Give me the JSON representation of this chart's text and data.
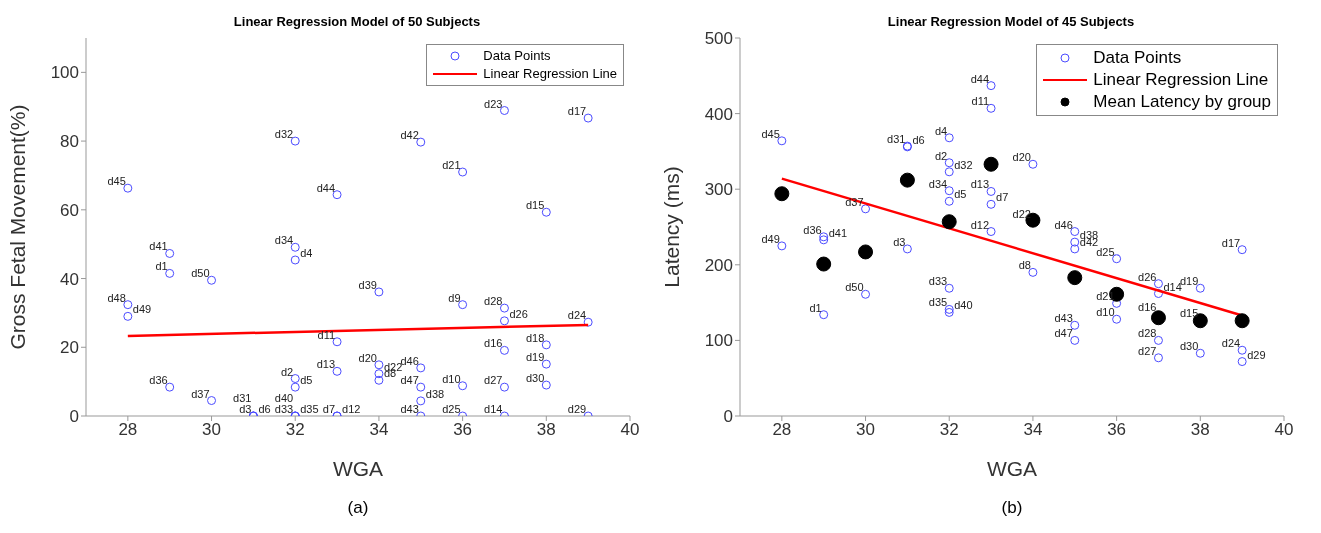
{
  "chart_data": [
    {
      "type": "scatter",
      "title": "Linear Regression Model of 50 Subjects",
      "xlabel": "WGA",
      "ylabel": "Gross Fetal Movement(%)",
      "xlim": [
        27,
        40
      ],
      "ylim": [
        0,
        110
      ],
      "xticks": [
        28,
        30,
        32,
        34,
        36,
        38,
        40
      ],
      "yticks": [
        0,
        20,
        40,
        60,
        80,
        100
      ],
      "grid": false,
      "legend": "top right",
      "series": [
        {
          "name": "Data Points",
          "type": "scatter",
          "marker": "circle",
          "color": "#4b4bff",
          "x": [
            28,
            28,
            28,
            29,
            29,
            29,
            30,
            30,
            31,
            31,
            31,
            32,
            32,
            32,
            32,
            32,
            32,
            32,
            32,
            33,
            33,
            33,
            33,
            33,
            34,
            34,
            34,
            34,
            35,
            35,
            35,
            35,
            35,
            36,
            36,
            36,
            36,
            37,
            37,
            37,
            37,
            37,
            37,
            38,
            38,
            38,
            38,
            39,
            39,
            39
          ],
          "values": [
            66.3,
            32.4,
            29.0,
            47.3,
            41.5,
            8.4,
            39.5,
            4.5,
            0,
            0,
            0,
            80.0,
            49.1,
            45.4,
            10.9,
            8.4,
            0,
            0,
            0,
            64.4,
            21.6,
            13.0,
            0,
            0,
            36.1,
            14.9,
            12.3,
            10.4,
            79.7,
            14.0,
            8.4,
            4.4,
            0,
            71.0,
            32.4,
            8.8,
            0,
            88.9,
            31.4,
            27.7,
            19.1,
            8.4,
            0,
            59.3,
            20.7,
            15.1,
            9.0,
            86.7,
            27.3,
            0
          ]
        },
        {
          "name": "Linear Regression Line",
          "type": "line",
          "marker": "none",
          "color": "#ff0000",
          "x": [
            28,
            39
          ],
          "values": [
            23.3,
            26.5
          ]
        }
      ],
      "annotations": [
        {
          "text": "d45",
          "x": 28,
          "y": 66.3
        },
        {
          "text": "d48",
          "x": 28,
          "y": 32.4
        },
        {
          "text": "d49",
          "x": 28,
          "y": 29.0
        },
        {
          "text": "d41",
          "x": 29,
          "y": 47.3
        },
        {
          "text": "d1",
          "x": 29,
          "y": 41.5
        },
        {
          "text": "d36",
          "x": 29,
          "y": 8.4
        },
        {
          "text": "d50",
          "x": 30,
          "y": 39.5
        },
        {
          "text": "d37",
          "x": 30,
          "y": 4.5
        },
        {
          "text": "d3",
          "x": 31,
          "y": 0
        },
        {
          "text": "d6",
          "x": 31,
          "y": 0
        },
        {
          "text": "d31",
          "x": 31,
          "y": 0
        },
        {
          "text": "d32",
          "x": 32,
          "y": 80.0
        },
        {
          "text": "d34",
          "x": 32,
          "y": 49.1
        },
        {
          "text": "d4",
          "x": 32,
          "y": 45.4
        },
        {
          "text": "d2",
          "x": 32,
          "y": 10.9
        },
        {
          "text": "d5",
          "x": 32,
          "y": 8.4
        },
        {
          "text": "d33",
          "x": 32,
          "y": 0
        },
        {
          "text": "d35",
          "x": 32,
          "y": 0
        },
        {
          "text": "d40",
          "x": 32,
          "y": 0
        },
        {
          "text": "d44",
          "x": 33,
          "y": 64.4
        },
        {
          "text": "d11",
          "x": 33,
          "y": 21.6
        },
        {
          "text": "d13",
          "x": 33,
          "y": 13.0
        },
        {
          "text": "d7",
          "x": 33,
          "y": 0
        },
        {
          "text": "d12",
          "x": 33,
          "y": 0
        },
        {
          "text": "d39",
          "x": 34,
          "y": 36.1
        },
        {
          "text": "d20",
          "x": 34,
          "y": 14.9
        },
        {
          "text": "d22",
          "x": 34,
          "y": 12.3
        },
        {
          "text": "d8",
          "x": 34,
          "y": 10.4
        },
        {
          "text": "d42",
          "x": 35,
          "y": 79.7
        },
        {
          "text": "d46",
          "x": 35,
          "y": 14.0
        },
        {
          "text": "d47",
          "x": 35,
          "y": 8.4
        },
        {
          "text": "d38",
          "x": 35,
          "y": 4.4
        },
        {
          "text": "d43",
          "x": 35,
          "y": 0
        },
        {
          "text": "d21",
          "x": 36,
          "y": 71.0
        },
        {
          "text": "d9",
          "x": 36,
          "y": 32.4
        },
        {
          "text": "d10",
          "x": 36,
          "y": 8.8
        },
        {
          "text": "d25",
          "x": 36,
          "y": 0
        },
        {
          "text": "d23",
          "x": 37,
          "y": 88.9
        },
        {
          "text": "d28",
          "x": 37,
          "y": 31.4
        },
        {
          "text": "d26",
          "x": 37,
          "y": 27.7
        },
        {
          "text": "d16",
          "x": 37,
          "y": 19.1
        },
        {
          "text": "d27",
          "x": 37,
          "y": 8.4
        },
        {
          "text": "d14",
          "x": 37,
          "y": 0
        },
        {
          "text": "d15",
          "x": 38,
          "y": 59.3
        },
        {
          "text": "d18",
          "x": 38,
          "y": 20.7
        },
        {
          "text": "d19",
          "x": 38,
          "y": 15.1
        },
        {
          "text": "d30",
          "x": 38,
          "y": 9.0
        },
        {
          "text": "d17",
          "x": 39,
          "y": 86.7
        },
        {
          "text": "d24",
          "x": 39,
          "y": 27.3
        },
        {
          "text": "d29",
          "x": 39,
          "y": 0
        },
        "(a)"
      ]
    },
    {
      "type": "scatter",
      "title": "Linear Regression Model of 45 Subjects",
      "xlabel": "WGA",
      "ylabel": "Latency (ms)",
      "xlim": [
        27,
        40
      ],
      "ylim": [
        0,
        500
      ],
      "xticks": [
        28,
        30,
        32,
        34,
        36,
        38,
        40
      ],
      "yticks": [
        0,
        100,
        200,
        300,
        400,
        500
      ],
      "grid": false,
      "legend": "top right",
      "series": [
        {
          "name": "Data Points",
          "type": "scatter",
          "marker": "circle",
          "color": "#4b4bff",
          "x": [
            28,
            28,
            29,
            29,
            29,
            30,
            30,
            31,
            31,
            31,
            32,
            32,
            32,
            32,
            32,
            32,
            32,
            32,
            33,
            33,
            33,
            33,
            33,
            34,
            34,
            35,
            35,
            35,
            35,
            35,
            36,
            36,
            36,
            37,
            37,
            37,
            37,
            38,
            38,
            39,
            39,
            39
          ],
          "values": [
            364,
            225,
            237,
            233,
            134,
            274,
            161,
            357,
            356,
            221,
            368,
            335,
            323,
            298,
            284,
            169,
            141,
            137,
            437,
            407,
            297,
            280,
            244,
            333,
            190,
            244,
            230,
            221,
            120,
            100,
            208,
            149,
            128,
            175,
            162,
            100,
            77,
            169,
            83,
            220,
            87,
            72
          ]
        },
        {
          "name": "Linear Regression Line",
          "type": "line",
          "marker": "none",
          "color": "#ff0000",
          "x": [
            28,
            39
          ],
          "values": [
            314,
            133
          ]
        },
        {
          "name": "Mean Latency by group",
          "type": "scatter",
          "marker": "circle",
          "color": "#000000",
          "x": [
            28,
            29,
            30,
            31,
            32,
            33,
            34,
            35,
            36,
            37,
            38,
            39
          ],
          "values": [
            294,
            201,
            217,
            312,
            257,
            333,
            259,
            183,
            161,
            130,
            126,
            126
          ]
        }
      ],
      "annotations": [
        {
          "text": "d45",
          "x": 28,
          "y": 364
        },
        {
          "text": "d49",
          "x": 28,
          "y": 225
        },
        {
          "text": "d36",
          "x": 29,
          "y": 237
        },
        {
          "text": "d41",
          "x": 29,
          "y": 233
        },
        {
          "text": "d1",
          "x": 29,
          "y": 134
        },
        {
          "text": "d37",
          "x": 30,
          "y": 274
        },
        {
          "text": "d50",
          "x": 30,
          "y": 161
        },
        {
          "text": "d31",
          "x": 31,
          "y": 357
        },
        {
          "text": "d6",
          "x": 31,
          "y": 356
        },
        {
          "text": "d3",
          "x": 31,
          "y": 221
        },
        {
          "text": "d4",
          "x": 32,
          "y": 368
        },
        {
          "text": "d2",
          "x": 32,
          "y": 335
        },
        {
          "text": "d32",
          "x": 32,
          "y": 323
        },
        {
          "text": "d34",
          "x": 32,
          "y": 298
        },
        {
          "text": "d5",
          "x": 32,
          "y": 284
        },
        {
          "text": "d33",
          "x": 32,
          "y": 169
        },
        {
          "text": "d35",
          "x": 32,
          "y": 141
        },
        {
          "text": "d40",
          "x": 32,
          "y": 137
        },
        {
          "text": "d44",
          "x": 33,
          "y": 437
        },
        {
          "text": "d11",
          "x": 33,
          "y": 407
        },
        {
          "text": "d13",
          "x": 33,
          "y": 297
        },
        {
          "text": "d7",
          "x": 33,
          "y": 280
        },
        {
          "text": "d12",
          "x": 33,
          "y": 244
        },
        {
          "text": "d20",
          "x": 34,
          "y": 333
        },
        {
          "text": "d22",
          "x": 34,
          "y": 258
        },
        {
          "text": "d8",
          "x": 34,
          "y": 190
        },
        {
          "text": "d46",
          "x": 35,
          "y": 244
        },
        {
          "text": "d38",
          "x": 35,
          "y": 230
        },
        {
          "text": "d42",
          "x": 35,
          "y": 221
        },
        {
          "text": "d43",
          "x": 35,
          "y": 120
        },
        {
          "text": "d47",
          "x": 35,
          "y": 100
        },
        {
          "text": "d25",
          "x": 36,
          "y": 208
        },
        {
          "text": "d21",
          "x": 36,
          "y": 149
        },
        {
          "text": "d10",
          "x": 36,
          "y": 128
        },
        {
          "text": "d26",
          "x": 37,
          "y": 175
        },
        {
          "text": "d14",
          "x": 37,
          "y": 162
        },
        {
          "text": "d16",
          "x": 37,
          "y": 135
        },
        {
          "text": "d28",
          "x": 37,
          "y": 100
        },
        {
          "text": "d27",
          "x": 37,
          "y": 77
        },
        {
          "text": "d19",
          "x": 38,
          "y": 169
        },
        {
          "text": "d15",
          "x": 38,
          "y": 127
        },
        {
          "text": "d30",
          "x": 38,
          "y": 83
        },
        {
          "text": "d17",
          "x": 39,
          "y": 220
        },
        {
          "text": "d24",
          "x": 39,
          "y": 87
        },
        {
          "text": "d29",
          "x": 39,
          "y": 72
        },
        "(b)"
      ]
    }
  ]
}
